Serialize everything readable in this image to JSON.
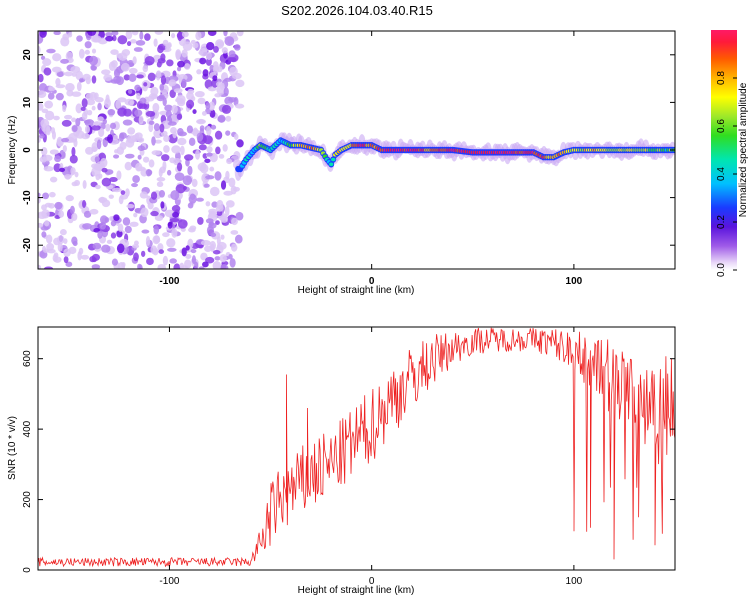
{
  "title": "S202.2026.104.03.40.R15",
  "chart_data": [
    {
      "type": "heatmap",
      "name": "spectrogram",
      "xlabel": "Height of straight line (km)",
      "ylabel": "Frequency (Hz)",
      "xlim": [
        -165,
        150
      ],
      "ylim": [
        -25,
        25
      ],
      "xticks": [
        -100,
        0,
        100
      ],
      "yticks": [
        20,
        10,
        0,
        -10,
        -20
      ],
      "noise_region_x": [
        -165,
        -65
      ],
      "tone_trace": {
        "x": [
          -65,
          -62,
          -58,
          -55,
          -50,
          -45,
          -40,
          -35,
          -30,
          -25,
          -22,
          -20,
          -18,
          -15,
          -10,
          -5,
          0,
          5,
          10,
          20,
          30,
          40,
          50,
          60,
          70,
          80,
          85,
          90,
          95,
          100,
          110,
          120,
          130,
          140,
          150
        ],
        "freq": [
          -4,
          -2,
          0,
          1,
          0,
          2,
          1,
          1,
          0.5,
          0,
          -2,
          -3,
          -1,
          0,
          1,
          1,
          1,
          0,
          0,
          0,
          0,
          0,
          -0.5,
          -0.5,
          -0.5,
          -0.5,
          -1.5,
          -1.5,
          -0.5,
          0,
          0,
          0,
          0,
          0,
          0
        ],
        "amplitude": [
          0.2,
          0.45,
          0.3,
          0.55,
          0.4,
          0.35,
          0.5,
          0.7,
          0.85,
          0.6,
          0.45,
          0.4,
          0.6,
          0.7,
          0.75,
          0.9,
          0.8,
          0.85,
          0.95,
          0.9,
          0.85,
          0.9,
          0.95,
          0.95,
          0.95,
          0.9,
          0.85,
          0.7,
          0.8,
          0.6,
          0.7,
          0.6,
          0.7,
          0.55,
          0.5
        ]
      },
      "colorbar": {
        "label": "Normalized spectral amplitude",
        "ticks": [
          0.0,
          0.2,
          0.4,
          0.6,
          0.8
        ],
        "tick_labels": [
          "0.0",
          "0.2",
          "0.4",
          "0.6",
          "0.8"
        ],
        "range": [
          0,
          1
        ]
      }
    },
    {
      "type": "line",
      "name": "snr",
      "xlabel": "Height of straight line (km)",
      "ylabel": "SNR (10 * v/v)",
      "xlim": [
        -165,
        150
      ],
      "ylim": [
        0,
        690
      ],
      "xticks": [
        -100,
        0,
        100
      ],
      "yticks": [
        0,
        200,
        400,
        600
      ],
      "color": "#ee2222",
      "envelope": {
        "x": [
          -165,
          -60,
          -55,
          -50,
          -45,
          -40,
          -35,
          -30,
          -20,
          -10,
          0,
          10,
          20,
          30,
          40,
          50,
          60,
          70,
          80,
          90,
          100,
          110,
          120,
          130,
          140,
          150
        ],
        "low": [
          10,
          10,
          30,
          60,
          100,
          120,
          140,
          160,
          200,
          250,
          300,
          380,
          450,
          520,
          580,
          610,
          620,
          620,
          620,
          600,
          560,
          500,
          420,
          350,
          300,
          300
        ],
        "high": [
          35,
          35,
          120,
          250,
          300,
          320,
          350,
          380,
          400,
          460,
          520,
          590,
          640,
          670,
          680,
          690,
          690,
          690,
          690,
          690,
          680,
          670,
          660,
          650,
          640,
          640
        ]
      },
      "spikes": [
        {
          "x": -42,
          "y": 555
        },
        {
          "x": -32,
          "y": 460
        },
        {
          "x": 33,
          "y": 640
        },
        {
          "x": 100,
          "y": 110
        },
        {
          "x": 108,
          "y": 120
        },
        {
          "x": 120,
          "y": 30
        },
        {
          "x": 132,
          "y": 150
        },
        {
          "x": 140,
          "y": 70
        }
      ]
    }
  ]
}
